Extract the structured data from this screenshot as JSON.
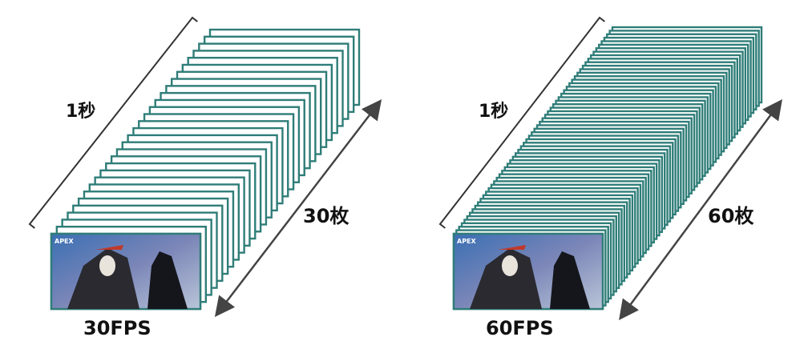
{
  "panels": [
    {
      "duration_label": "1秒",
      "count_label": "30枚",
      "fps_label": "30FPS",
      "frame_count": 30,
      "thumbnail_badge": "APEX"
    },
    {
      "duration_label": "1秒",
      "count_label": "60枚",
      "fps_label": "60FPS",
      "frame_count": 60,
      "thumbnail_badge": "APEX"
    }
  ],
  "colors": {
    "frame_border": "#2f7d78",
    "line": "#333333",
    "text": "#111111"
  }
}
